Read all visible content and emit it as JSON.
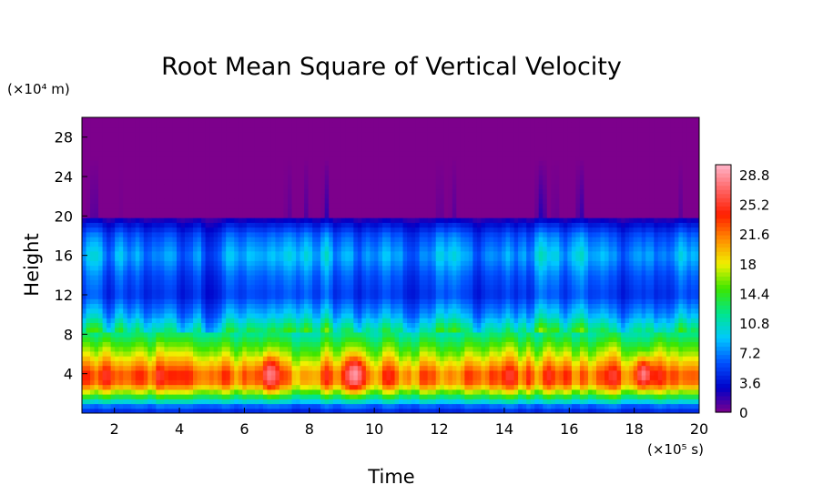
{
  "chart_data": {
    "type": "heatmap",
    "title": "Root Mean Square of Vertical Velocity",
    "xlabel": "Time",
    "ylabel": "Height",
    "x_unit_label": "(×10⁵ s)",
    "y_unit_label": "(×10⁴ m)",
    "xlim": [
      1,
      20
    ],
    "ylim": [
      0,
      30
    ],
    "x_ticks": [
      2,
      4,
      6,
      8,
      10,
      12,
      14,
      16,
      18,
      20
    ],
    "x_tick_labels": [
      "2",
      "4",
      "6",
      "8",
      "10",
      "12",
      "14",
      "16",
      "18",
      "20"
    ],
    "y_ticks": [
      4,
      8,
      12,
      16,
      20,
      24,
      28
    ],
    "y_tick_labels": [
      "4",
      "8",
      "12",
      "16",
      "20",
      "24",
      "28"
    ],
    "colorbar": {
      "range": [
        0,
        30
      ],
      "ticks": [
        0,
        3.6,
        7.2,
        10.8,
        14.4,
        18,
        21.6,
        25.2,
        28.8
      ],
      "tick_labels": [
        "0",
        "3.6",
        "7.2",
        "10.8",
        "14.4",
        "18",
        "21.6",
        "25.2",
        "28.8"
      ],
      "colors": [
        "#7d008c",
        "#0000c8",
        "#0050ff",
        "#00c8ff",
        "#00e68c",
        "#3ce600",
        "#f0f000",
        "#ff8c00",
        "#ff1e00",
        "#ff6464",
        "#ffb4c8"
      ]
    },
    "vertical_profile": [
      {
        "height": 0.5,
        "value": 5
      },
      {
        "height": 1.5,
        "value": 13
      },
      {
        "height": 3.0,
        "value": 23
      },
      {
        "height": 4.0,
        "value": 24
      },
      {
        "height": 6.0,
        "value": 18
      },
      {
        "height": 8.0,
        "value": 13
      },
      {
        "height": 10.0,
        "value": 8
      },
      {
        "height": 12.0,
        "value": 5
      },
      {
        "height": 14.0,
        "value": 6
      },
      {
        "height": 16.0,
        "value": 8
      },
      {
        "height": 18.0,
        "value": 6
      },
      {
        "height": 19.5,
        "value": 3
      },
      {
        "height": 20.0,
        "value": 0.5
      },
      {
        "height": 22.0,
        "value": 0
      }
    ],
    "peaks": [
      {
        "time": 9.4,
        "height": 4.0,
        "value": 29
      },
      {
        "time": 6.8,
        "height": 4.0,
        "value": 28
      },
      {
        "time": 18.3,
        "height": 4.0,
        "value": 28
      }
    ],
    "grid": false
  }
}
